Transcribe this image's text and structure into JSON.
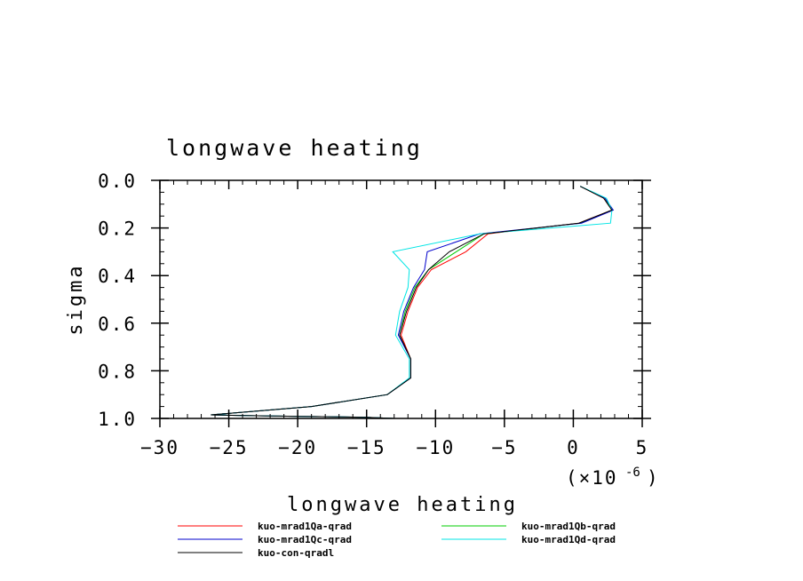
{
  "chart_data": {
    "type": "line",
    "title": "longwave heating",
    "xlabel": "longwave heating",
    "ylabel": "sigma",
    "x_multiplier_label": "(×10",
    "x_multiplier_exp": "-6",
    "x_multiplier_close": ")",
    "xlim": [
      -30,
      5
    ],
    "ylim": [
      0.0,
      1.0
    ],
    "y_inverted": true,
    "x_ticks": [
      -30,
      -25,
      -20,
      -15,
      -10,
      -5,
      0,
      5
    ],
    "x_tick_labels": [
      "−30",
      "−25",
      "−20",
      "−15",
      "−10",
      "−5",
      "0",
      "5"
    ],
    "y_ticks": [
      0.0,
      0.2,
      0.4,
      0.6,
      0.8,
      1.0
    ],
    "y_tick_labels": [
      "0.0",
      "0.2",
      "0.4",
      "0.6",
      "0.8",
      "1.0"
    ],
    "grid": false,
    "legend_position": "bottom",
    "series": [
      {
        "name": "kuo-mrad1Qa-qrad",
        "color": "#ff0000",
        "x": [
          0.5,
          2.2,
          2.8,
          0.4,
          -6.2,
          -7.8,
          -10.3,
          -11.3,
          -12.0,
          -12.5,
          -11.8,
          -11.8,
          -13.5,
          -19.0,
          -26.3,
          -22.0,
          -15.0,
          -13.0
        ],
        "y": [
          0.025,
          0.075,
          0.125,
          0.18,
          0.225,
          0.3,
          0.375,
          0.45,
          0.55,
          0.65,
          0.75,
          0.83,
          0.9,
          0.95,
          0.985,
          0.99,
          0.995,
          1.0
        ]
      },
      {
        "name": "kuo-mrad1Qb-qrad",
        "color": "#00cc00",
        "x": [
          0.5,
          2.3,
          2.8,
          0.5,
          -6.5,
          -8.5,
          -10.5,
          -11.5,
          -12.2,
          -12.6,
          -11.8,
          -11.8,
          -13.5,
          -19.0,
          -26.3,
          -22.0,
          -15.0,
          -13.0
        ],
        "y": [
          0.025,
          0.075,
          0.125,
          0.18,
          0.225,
          0.3,
          0.375,
          0.45,
          0.55,
          0.65,
          0.75,
          0.83,
          0.9,
          0.95,
          0.985,
          0.99,
          0.995,
          1.0
        ]
      },
      {
        "name": "kuo-mrad1Qc-qrad",
        "color": "#0000cc",
        "x": [
          0.5,
          2.3,
          2.9,
          0.6,
          -6.8,
          -10.6,
          -10.8,
          -11.6,
          -12.3,
          -12.7,
          -11.8,
          -11.8,
          -13.5,
          -19.0,
          -26.3,
          -22.0,
          -15.0,
          -13.0
        ],
        "y": [
          0.025,
          0.075,
          0.125,
          0.18,
          0.225,
          0.3,
          0.375,
          0.45,
          0.55,
          0.65,
          0.75,
          0.83,
          0.9,
          0.95,
          0.985,
          0.99,
          0.995,
          1.0
        ]
      },
      {
        "name": "kuo-mrad1Qd-qrad",
        "color": "#00e5e5",
        "x": [
          0.5,
          2.4,
          2.8,
          2.7,
          -6.8,
          -13.1,
          -11.9,
          -12.0,
          -12.6,
          -12.9,
          -11.9,
          -11.9,
          -13.5,
          -19.0,
          -26.3,
          -22.0,
          -15.0,
          -13.0
        ],
        "y": [
          0.025,
          0.075,
          0.125,
          0.18,
          0.225,
          0.3,
          0.375,
          0.45,
          0.55,
          0.65,
          0.75,
          0.83,
          0.9,
          0.95,
          0.985,
          0.99,
          0.995,
          1.0
        ]
      },
      {
        "name": "kuo-con-qradl",
        "color": "#000000",
        "x": [
          0.5,
          2.2,
          2.8,
          0.4,
          -6.5,
          -9.0,
          -10.5,
          -11.4,
          -12.1,
          -12.6,
          -11.8,
          -11.8,
          -13.5,
          -19.0,
          -26.3,
          -22.0,
          -15.0,
          -13.0
        ],
        "y": [
          0.025,
          0.075,
          0.125,
          0.18,
          0.225,
          0.3,
          0.375,
          0.45,
          0.55,
          0.65,
          0.75,
          0.83,
          0.9,
          0.95,
          0.985,
          0.99,
          0.995,
          1.0
        ]
      }
    ]
  }
}
